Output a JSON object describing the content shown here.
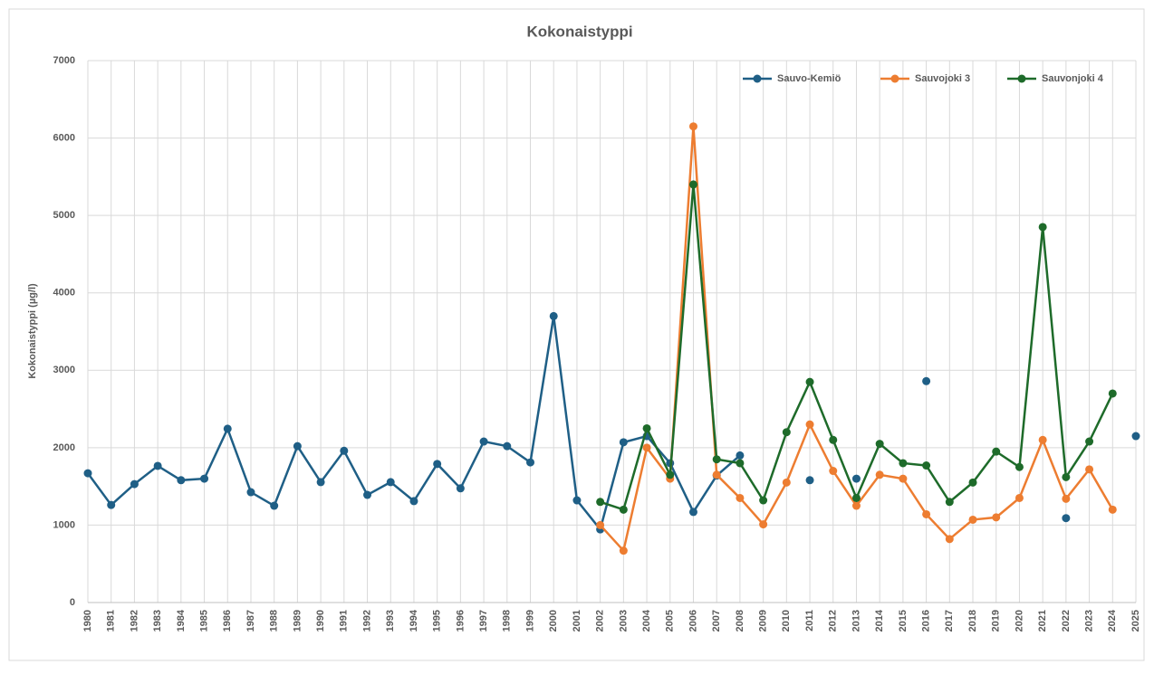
{
  "chart_data": {
    "type": "line",
    "title": "Kokonaistyppi",
    "y_label": "Kokonaistyppi (µg/l)",
    "categories": [
      "1980",
      "1981",
      "1982",
      "1983",
      "1984",
      "1985",
      "1986",
      "1987",
      "1988",
      "1989",
      "1990",
      "1991",
      "1992",
      "1993",
      "1994",
      "1995",
      "1996",
      "1997",
      "1998",
      "1999",
      "2000",
      "2001",
      "2002",
      "2003",
      "2004",
      "2005",
      "2006",
      "2007",
      "2008",
      "2009",
      "2010",
      "2011",
      "2012",
      "2013",
      "2014",
      "2015",
      "2016",
      "2017",
      "2018",
      "2019",
      "2020",
      "2021",
      "2022",
      "2023",
      "2024",
      "2025"
    ],
    "series": [
      {
        "name": "Sauvo-Kemiö",
        "color": "#1f5f86",
        "values": [
          1670,
          1260,
          1530,
          1765,
          1580,
          1600,
          2245,
          1425,
          1250,
          2020,
          1555,
          1960,
          1390,
          1555,
          1310,
          1790,
          1475,
          2080,
          2020,
          1810,
          3700,
          1320,
          945,
          2070,
          2150,
          1800,
          1170,
          1640,
          1900,
          null,
          null,
          1580,
          null,
          1600,
          null,
          null,
          2860,
          null,
          null,
          null,
          null,
          null,
          1090,
          null,
          null,
          2150
        ]
      },
      {
        "name": "Sauvojoki 3",
        "color": "#ed7d31",
        "values": [
          null,
          null,
          null,
          null,
          null,
          null,
          null,
          null,
          null,
          null,
          null,
          null,
          null,
          null,
          null,
          null,
          null,
          null,
          null,
          null,
          null,
          null,
          1000,
          670,
          2000,
          1600,
          6150,
          1650,
          1350,
          1010,
          1550,
          2300,
          1700,
          1250,
          1650,
          1600,
          1140,
          820,
          1070,
          1100,
          1350,
          2100,
          1340,
          1720,
          1200,
          null
        ]
      },
      {
        "name": "Sauvonjoki 4",
        "color": "#1e6b2a",
        "values": [
          null,
          null,
          null,
          null,
          null,
          null,
          null,
          null,
          null,
          null,
          null,
          null,
          null,
          null,
          null,
          null,
          null,
          null,
          null,
          null,
          null,
          null,
          1300,
          1200,
          2250,
          1650,
          5400,
          1850,
          1800,
          1320,
          2200,
          2850,
          2100,
          1350,
          2050,
          1800,
          1770,
          1300,
          1550,
          1950,
          1750,
          4850,
          1620,
          2080,
          2700,
          null
        ]
      }
    ],
    "ylim": [
      0,
      7000
    ],
    "yticks": [
      0,
      1000,
      2000,
      3000,
      4000,
      5000,
      6000,
      7000
    ],
    "grid": true,
    "legend": "top-right"
  }
}
